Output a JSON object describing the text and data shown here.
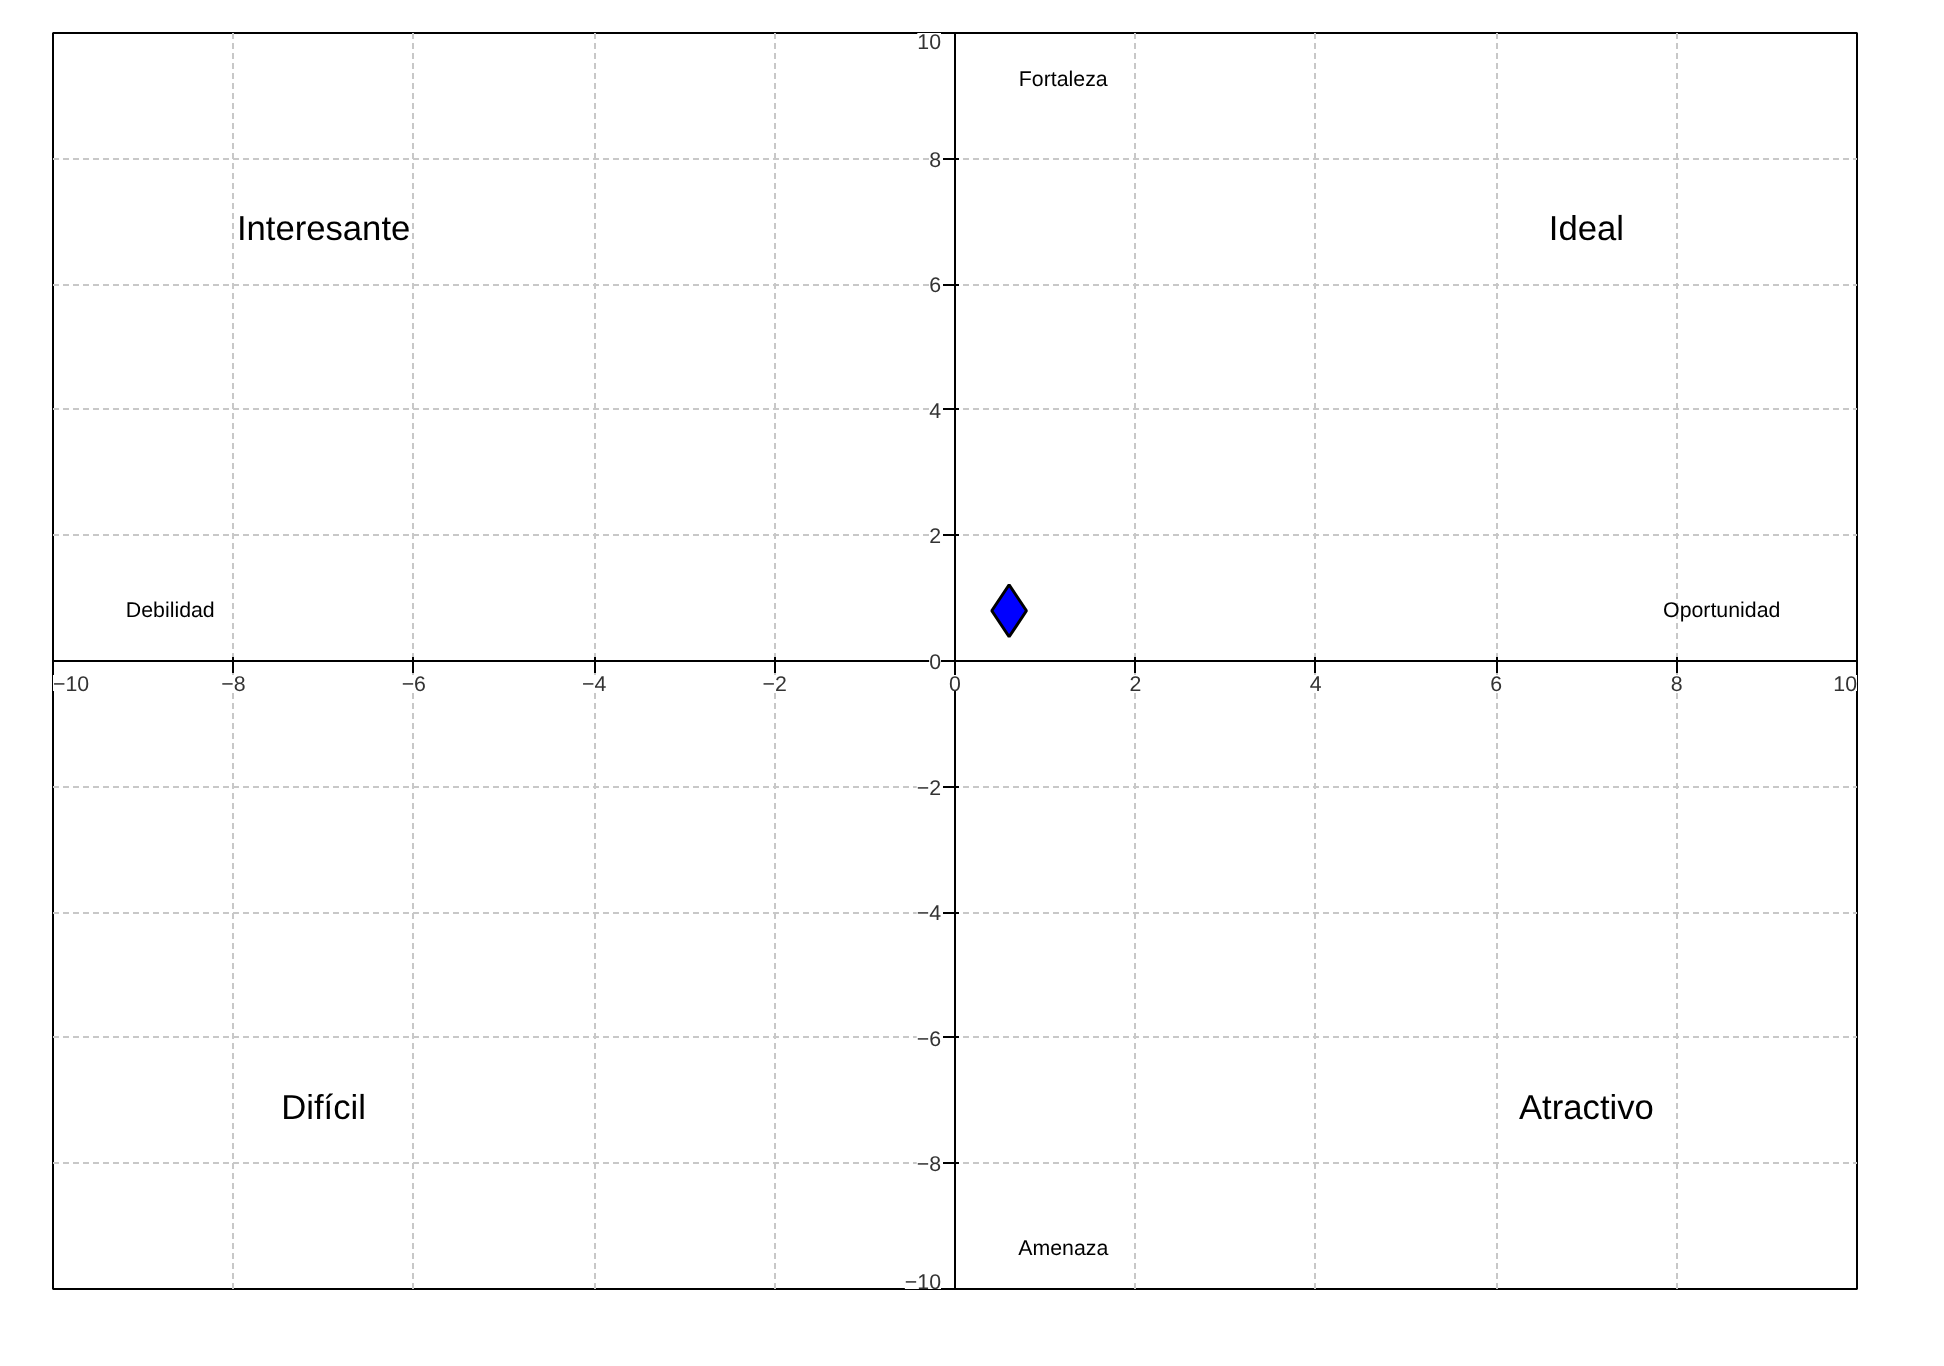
{
  "chart_data": {
    "type": "scatter",
    "x": [
      0.6
    ],
    "values": [
      0.8
    ],
    "color": "#0000ff",
    "marker": "diamond",
    "xlim": [
      -10,
      10
    ],
    "ylim": [
      -10,
      10
    ],
    "xticks": [
      -10,
      -8,
      -6,
      -4,
      -2,
      0,
      2,
      4,
      6,
      8,
      10
    ],
    "yticks": [
      -10,
      -8,
      -6,
      -4,
      -2,
      0,
      2,
      4,
      6,
      8,
      10
    ],
    "grid": true,
    "annotations": [
      "Interesante",
      "Ideal",
      "Difícil",
      "Atractivo",
      "Fortaleza",
      "Debilidad",
      "Oportunidad",
      "Amenaza"
    ]
  }
}
